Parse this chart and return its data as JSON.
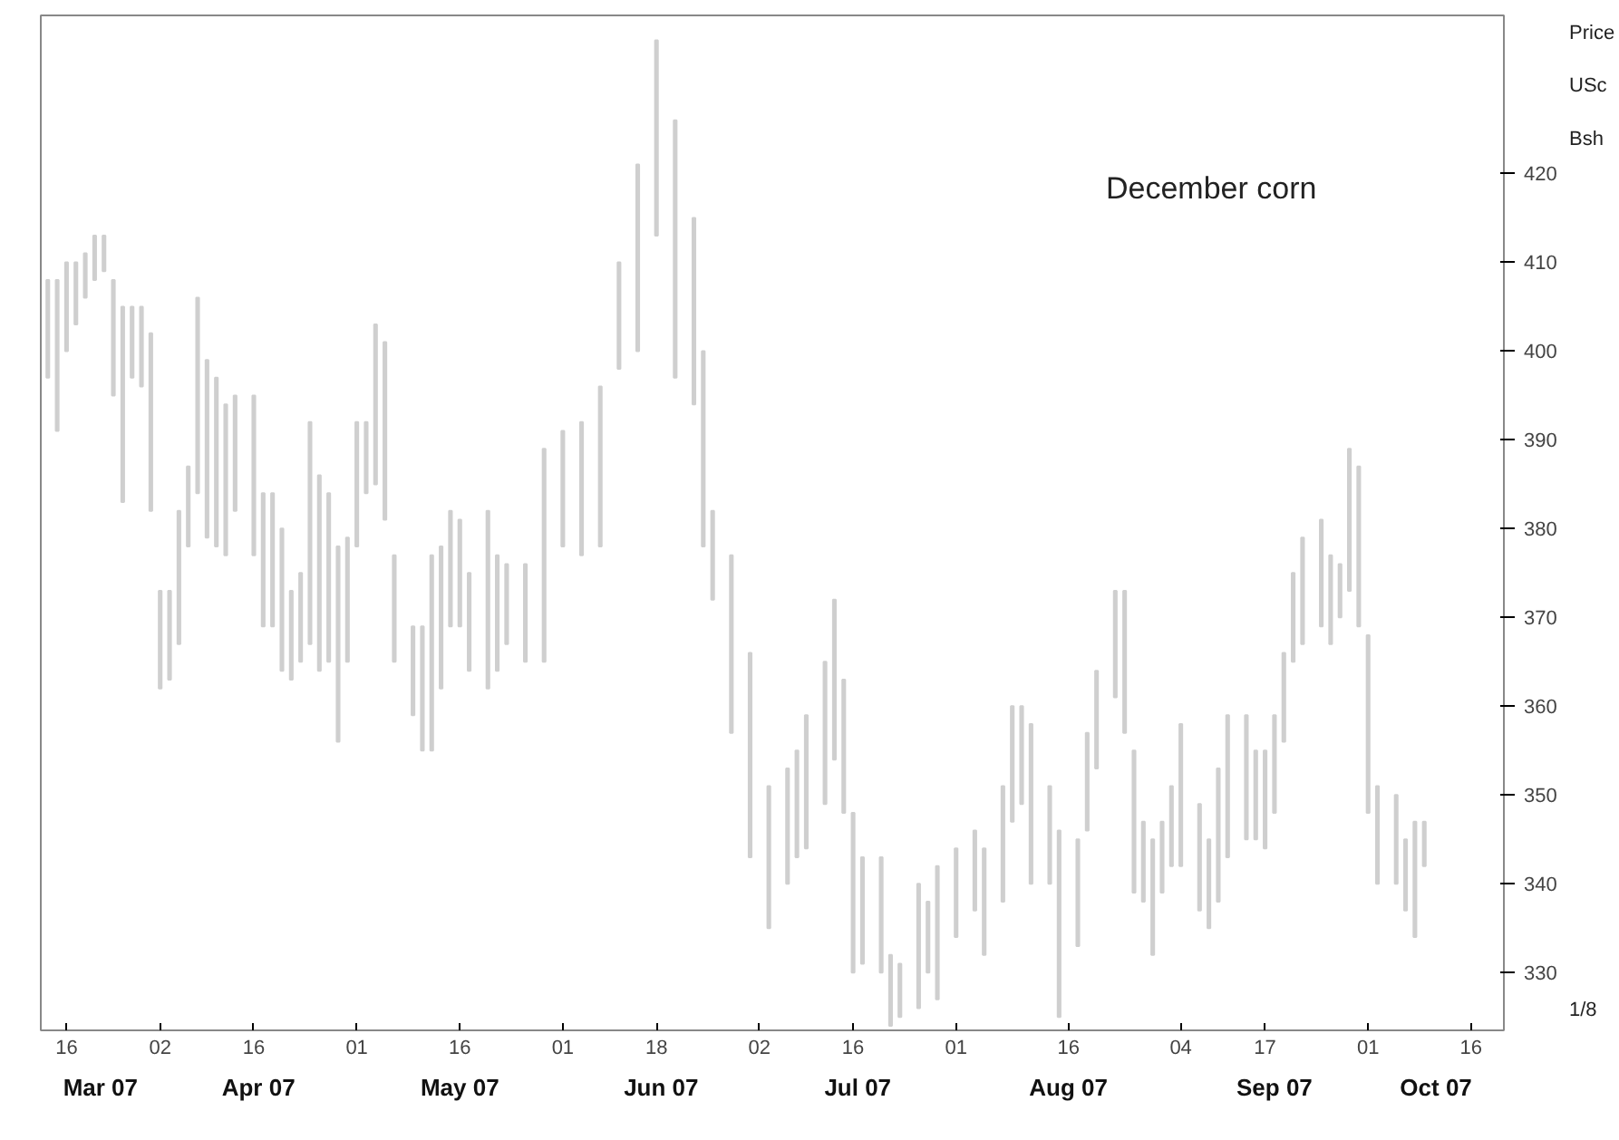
{
  "chart_data": {
    "type": "bar",
    "title": "December corn",
    "ylabel": "Price USc Bsh",
    "annotations": [
      "Mar 07",
      "Apr 07",
      "May 07",
      "Jun 07",
      "Jul 07",
      "Aug 07",
      "Sep 07",
      "Oct 07",
      "1/8"
    ],
    "categories": [
      null,
      null,
      "16",
      null,
      null,
      null,
      null,
      null,
      null,
      null,
      null,
      null,
      "02",
      null,
      null,
      null,
      null,
      null,
      null,
      null,
      null,
      null,
      "16",
      null,
      null,
      null,
      null,
      null,
      null,
      null,
      null,
      null,
      null,
      "01",
      null,
      null,
      null,
      null,
      null,
      null,
      null,
      null,
      null,
      null,
      "16",
      null,
      null,
      null,
      null,
      null,
      null,
      null,
      null,
      null,
      null,
      "01",
      null,
      null,
      null,
      null,
      null,
      null,
      null,
      null,
      null,
      "18",
      null,
      null,
      null,
      null,
      null,
      null,
      null,
      null,
      null,
      null,
      "02",
      null,
      null,
      null,
      null,
      null,
      null,
      null,
      null,
      null,
      "16",
      null,
      null,
      null,
      null,
      null,
      null,
      null,
      null,
      null,
      null,
      "01",
      null,
      null,
      null,
      null,
      null,
      null,
      null,
      null,
      null,
      null,
      null,
      "16",
      null,
      null,
      null,
      null,
      null,
      null,
      null,
      null,
      null,
      null,
      null,
      "04",
      null,
      null,
      null,
      null,
      null,
      null,
      null,
      null,
      "17",
      null,
      null,
      null,
      null,
      null,
      null,
      null,
      null,
      null,
      null,
      "01",
      null,
      null,
      null,
      null,
      null,
      null,
      null,
      null,
      null,
      null,
      "16",
      null,
      null,
      null
    ],
    "base": [
      397,
      391,
      400,
      403,
      406,
      408,
      409,
      395,
      383,
      397,
      396,
      382,
      362,
      363,
      367,
      378,
      384,
      379,
      378,
      377,
      382,
      null,
      377,
      369,
      369,
      364,
      363,
      365,
      367,
      364,
      365,
      356,
      365,
      378,
      384,
      385,
      381,
      365,
      null,
      359,
      355,
      355,
      362,
      369,
      369,
      364,
      null,
      362,
      364,
      367,
      null,
      365,
      null,
      365,
      null,
      378,
      null,
      377,
      null,
      378,
      null,
      398,
      null,
      400,
      null,
      413,
      null,
      397,
      null,
      394,
      378,
      372,
      null,
      357,
      null,
      343,
      null,
      335,
      null,
      340,
      343,
      344,
      null,
      349,
      354,
      348,
      330,
      331,
      null,
      330,
      324,
      325,
      null,
      326,
      330,
      327,
      null,
      334,
      null,
      337,
      332,
      null,
      338,
      347,
      349,
      340,
      null,
      340,
      325,
      null,
      333,
      346,
      353,
      null,
      361,
      357,
      339,
      338,
      332,
      339,
      342,
      342,
      null,
      337,
      335,
      338,
      343,
      null,
      345,
      345,
      344,
      348,
      356,
      365,
      367,
      null,
      369,
      367,
      370,
      373,
      369,
      348,
      340,
      null,
      340,
      337,
      334,
      342,
      null,
      null,
      null,
      null,
      null,
      null,
      null,
      null
    ],
    "values": [
      11,
      17,
      10,
      7,
      5,
      5,
      4,
      13,
      22,
      8,
      9,
      20,
      11,
      10,
      15,
      9,
      22,
      20,
      19,
      17,
      13,
      null,
      18,
      15,
      15,
      16,
      10,
      10,
      25,
      22,
      19,
      22,
      14,
      14,
      8,
      18,
      20,
      12,
      null,
      10,
      14,
      22,
      16,
      13,
      12,
      11,
      null,
      20,
      13,
      9,
      null,
      11,
      null,
      24,
      null,
      13,
      null,
      15,
      null,
      18,
      null,
      12,
      null,
      21,
      null,
      22,
      null,
      29,
      null,
      21,
      22,
      10,
      null,
      20,
      null,
      23,
      null,
      16,
      null,
      13,
      12,
      15,
      null,
      16,
      18,
      15,
      18,
      12,
      null,
      13,
      8,
      6,
      null,
      14,
      8,
      15,
      null,
      10,
      null,
      9,
      12,
      null,
      13,
      13,
      11,
      18,
      null,
      11,
      21,
      null,
      12,
      11,
      11,
      null,
      12,
      16,
      16,
      9,
      13,
      8,
      9,
      16,
      null,
      12,
      10,
      15,
      16,
      null,
      14,
      10,
      11,
      11,
      10,
      10,
      12,
      null,
      12,
      10,
      6,
      16,
      18,
      20,
      11,
      null,
      10,
      8,
      13,
      5,
      null,
      null,
      null,
      null,
      null,
      null,
      null,
      null
    ],
    "color": "#cfcfcf",
    "ylim": [
      323.5,
      437.8
    ],
    "yticks": [
      330,
      340,
      350,
      360,
      370,
      380,
      390,
      400,
      410,
      420
    ],
    "grid": false
  }
}
